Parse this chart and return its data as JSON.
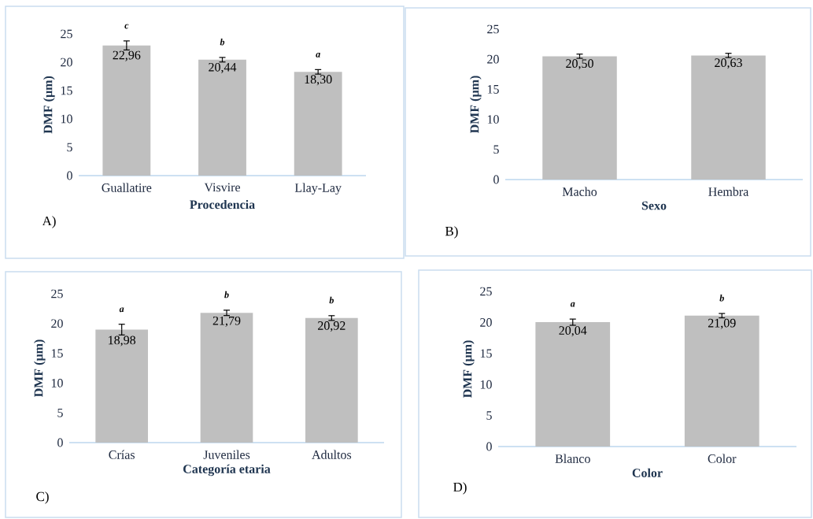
{
  "chart_data": [
    {
      "type": "bar",
      "xlabel": "Procedencia",
      "ylabel": "DMF (µm)",
      "categories": [
        "Guallatire",
        "Visvire",
        "Llay-Lay"
      ],
      "values": [
        22.96,
        20.44,
        18.3
      ],
      "errors": [
        0.8,
        0.4,
        0.4
      ],
      "value_labels": [
        "22,96",
        "20,44",
        "18,30"
      ],
      "color": "#bfbfbf",
      "ylim": [
        0,
        25
      ],
      "yticks": [
        0,
        5,
        10,
        15,
        20,
        25
      ],
      "annotations": [
        "A)",
        "c",
        "b",
        "a"
      ]
    },
    {
      "type": "bar",
      "xlabel": "Sexo",
      "ylabel": "DMF (µm)",
      "categories": [
        "Macho",
        "Hembra"
      ],
      "values": [
        20.5,
        20.63
      ],
      "errors": [
        0.35,
        0.35
      ],
      "value_labels": [
        "20,50",
        "20,63"
      ],
      "color": "#bfbfbf",
      "ylim": [
        0,
        25
      ],
      "yticks": [
        0,
        5,
        10,
        15,
        20,
        25
      ],
      "annotations": [
        "B)"
      ]
    },
    {
      "type": "bar",
      "xlabel": "Categoría etaria",
      "ylabel": "DMF (µm)",
      "categories": [
        "Crías",
        "Juveniles",
        "Adultos"
      ],
      "values": [
        18.98,
        21.79,
        20.92
      ],
      "errors": [
        0.9,
        0.45,
        0.4
      ],
      "value_labels": [
        "18,98",
        "21,79",
        "20,92"
      ],
      "color": "#bfbfbf",
      "ylim": [
        0,
        25
      ],
      "yticks": [
        0,
        5,
        10,
        15,
        20,
        25
      ],
      "annotations": [
        "C)",
        "a",
        "b",
        "b"
      ]
    },
    {
      "type": "bar",
      "xlabel": "Color",
      "ylabel": "DMF (µm)",
      "categories": [
        "Blanco",
        "Color"
      ],
      "values": [
        20.04,
        21.09
      ],
      "errors": [
        0.5,
        0.35
      ],
      "value_labels": [
        "20,04",
        "21,09"
      ],
      "color": "#bfbfbf",
      "ylim": [
        0,
        25
      ],
      "yticks": [
        0,
        5,
        10,
        15,
        20,
        25
      ],
      "annotations": [
        "D)",
        "a",
        "b"
      ]
    }
  ]
}
